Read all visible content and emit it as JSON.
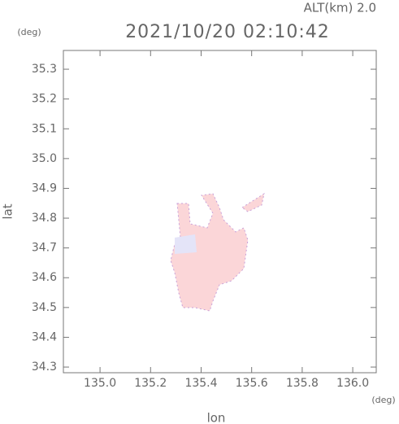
{
  "chart_data": {
    "type": "map",
    "title": "2021/10/20 02:10:42",
    "subtitle": "ALT(km) 2.0",
    "y_unit": "(deg)",
    "x_unit": "(deg)",
    "y_label": "lat",
    "x_label": "lon",
    "xlim": [
      134.855,
      136.093
    ],
    "ylim": [
      34.281,
      35.363
    ],
    "xticks": [
      {
        "value": 135.0,
        "label": "135.0"
      },
      135.2,
      135.4,
      135.6,
      135.8,
      {
        "value": 136.0,
        "label": "136.0"
      }
    ],
    "yticks": [
      34.3,
      34.4,
      34.5,
      34.6,
      34.7,
      34.8,
      34.9,
      {
        "value": 35.0,
        "label": "35.0"
      },
      35.1,
      35.2,
      35.3
    ]
  }
}
